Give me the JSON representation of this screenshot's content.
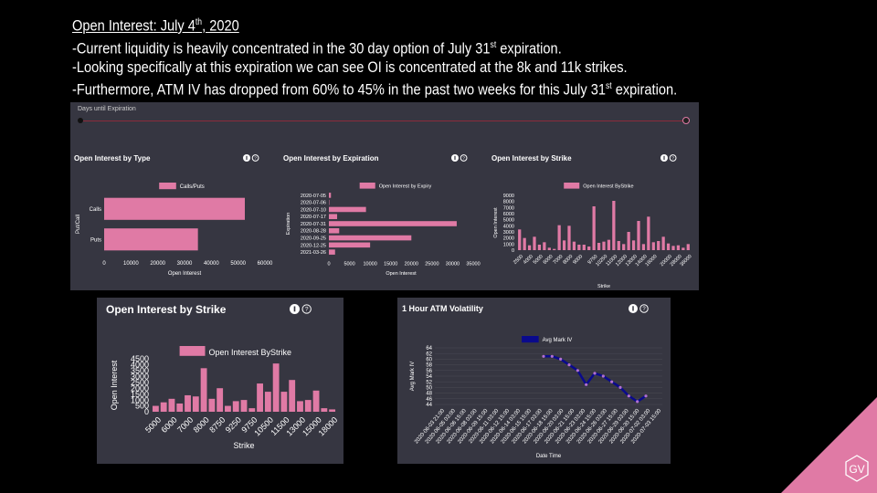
{
  "header": {
    "title_prefix": "Open Interest: July 4",
    "title_sup": "th",
    "title_suffix": ", 2020",
    "line1_prefix": "-Current liquidity is heavily concentrated in the 30 day option of July 31",
    "line1_sup": "st",
    "line1_suffix": " expiration.",
    "line2": "-Looking specifically at this expiration we can see OI is concentrated at the 8k and 11k strikes.",
    "line3_prefix": "-Furthermore, ATM IV has dropped from 60% to 45% in the past two weeks for this July 31",
    "line3_sup": "st",
    "line3_suffix": " expiration."
  },
  "dashboard": {
    "slider_label": "Days until Expiration"
  },
  "colors": {
    "bar": "#e07aa5",
    "iv": "#0a0a8c",
    "panel": "#363641",
    "slider": "#8b2b3b"
  },
  "icons": [
    "info-icon",
    "help-icon"
  ],
  "logo_text": "GV",
  "chart_data": [
    {
      "type": "bar",
      "orientation": "horizontal",
      "title": "Open Interest by Type",
      "legend": "Calls/Puts",
      "xlabel": "Open Interest",
      "ylabel": "Put/Call",
      "categories": [
        "Calls",
        "Puts"
      ],
      "values": [
        52500,
        35000
      ],
      "xlim": [
        0,
        60000
      ],
      "xticks": [
        "0",
        "10000",
        "20000",
        "30000",
        "40000",
        "50000",
        "60000"
      ]
    },
    {
      "type": "bar",
      "orientation": "horizontal",
      "title": "Open Interest by Expiration",
      "legend": "Open Interest by Expiry",
      "xlabel": "Open Interest",
      "ylabel": "Expiration",
      "categories": [
        "2020-07-05",
        "2020-07-06",
        "2020-07-10",
        "2020-07-17",
        "2020-07-31",
        "2020-08-28",
        "2020-09-25",
        "2020-12-25",
        "2021-03-26"
      ],
      "values": [
        500,
        100,
        9000,
        2000,
        31000,
        2500,
        20000,
        10000,
        1500
      ],
      "xlim": [
        0,
        35000
      ],
      "xticks": [
        "0",
        "5000",
        "10000",
        "15000",
        "20000",
        "25000",
        "30000",
        "35000"
      ]
    },
    {
      "type": "bar",
      "title": "Open Interest by Strike",
      "legend": "Open Interest ByStrike",
      "xlabel": "Strike",
      "ylabel": "Open Interest",
      "categories": [
        "2500",
        "3000",
        "4000",
        "4500",
        "5000",
        "5500",
        "6000",
        "6500",
        "7000",
        "7500",
        "8000",
        "8500",
        "9000",
        "9250",
        "9500",
        "9750",
        "10000",
        "10250",
        "10500",
        "11000",
        "11500",
        "12000",
        "12500",
        "13000",
        "13500",
        "14000",
        "15000",
        "16000",
        "17000",
        "18000",
        "20000",
        "24000",
        "28000",
        "32000",
        "36000"
      ],
      "tick_labels": [
        "2500",
        "4000",
        "5000",
        "6000",
        "7000",
        "8000",
        "9000",
        "9750",
        "10250",
        "11000",
        "12000",
        "13000",
        "14000",
        "16000",
        "20000",
        "28000",
        "36000"
      ],
      "values": [
        3400,
        2000,
        800,
        2200,
        900,
        1300,
        400,
        200,
        4100,
        1600,
        4000,
        1400,
        900,
        900,
        600,
        7200,
        1200,
        1400,
        1700,
        8100,
        1500,
        1000,
        3000,
        1600,
        4800,
        1000,
        5500,
        1300,
        1500,
        2200,
        1100,
        700,
        800,
        400,
        1000
      ],
      "ylim": [
        0,
        9000
      ],
      "yticks": [
        "0",
        "1000",
        "2000",
        "3000",
        "4000",
        "5000",
        "6000",
        "7000",
        "8000",
        "9000"
      ]
    },
    {
      "type": "bar",
      "title": "Open Interest by Strike",
      "legend": "Open Interest ByStrike",
      "xlabel": "Strike",
      "ylabel": "Open Interest",
      "categories": [
        "5000",
        "5500",
        "6000",
        "6500",
        "7000",
        "7500",
        "8000",
        "8500",
        "8750",
        "9000",
        "9250",
        "9500",
        "9750",
        "10000",
        "10500",
        "11000",
        "11500",
        "12000",
        "13000",
        "14000",
        "15000",
        "16000",
        "18000"
      ],
      "tick_labels": [
        "5000",
        "6000",
        "7000",
        "8000",
        "8750",
        "9250",
        "9750",
        "10500",
        "11500",
        "13000",
        "15000",
        "18000"
      ],
      "values": [
        500,
        800,
        1100,
        700,
        1400,
        1300,
        3700,
        1100,
        2000,
        500,
        900,
        1000,
        300,
        2400,
        1700,
        4100,
        1700,
        2700,
        900,
        1000,
        1800,
        300,
        200
      ],
      "ylim": [
        0,
        4500
      ],
      "yticks": [
        "0",
        "500",
        "1000",
        "1500",
        "2000",
        "2500",
        "3000",
        "3500",
        "4000",
        "4500"
      ]
    },
    {
      "type": "line",
      "title": "1 Hour ATM Volatility",
      "legend": "Avg Mark IV",
      "xlabel": "Date Time",
      "ylabel": "Avg Mark IV",
      "x": [
        "2020-06-22 06:00",
        "2020-06-23 06:00",
        "2020-06-24 06:00",
        "2020-06-25 06:00",
        "2020-06-26 06:00",
        "2020-06-27 06:00",
        "2020-06-28 06:00",
        "2020-06-29 06:00",
        "2020-06-30 06:00",
        "2020-07-01 06:00",
        "2020-07-02 06:00",
        "2020-07-03 06:00",
        "2020-07-04 06:00"
      ],
      "y": [
        61,
        61,
        60,
        58,
        56,
        51,
        55,
        54,
        52,
        50,
        47,
        45,
        47
      ],
      "tick_labels": [
        "2020-06-03 21:00",
        "2020-06-05 03:00",
        "2020-06-06 15:00",
        "2020-06-08 03:00",
        "2020-06-09 15:00",
        "2020-06-11 03:00",
        "2020-06-12 15:00",
        "2020-06-14 03:00",
        "2020-06-15 15:00",
        "2020-06-17 03:00",
        "2020-06-18 15:00",
        "2020-06-20 03:00",
        "2020-06-21 15:00",
        "2020-06-23 03:00",
        "2020-06-24 15:00",
        "2020-06-26 03:00",
        "2020-06-27 15:00",
        "2020-06-29 03:00",
        "2020-06-30 15:00",
        "2020-07-02 03:00",
        "2020-07-03 15:00"
      ],
      "ylim": [
        44,
        64
      ],
      "yticks": [
        "44",
        "46",
        "48",
        "50",
        "52",
        "54",
        "56",
        "58",
        "60",
        "62",
        "64"
      ]
    }
  ]
}
